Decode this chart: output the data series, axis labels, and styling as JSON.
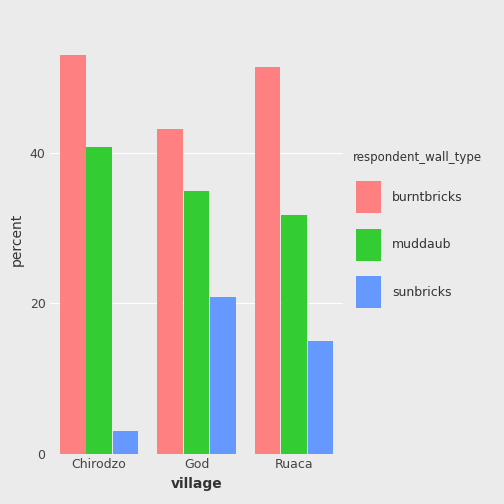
{
  "villages": [
    "Chirodzo",
    "God",
    "Ruaca"
  ],
  "wall_types": [
    "burntbricks",
    "muddaub",
    "sunbricks"
  ],
  "values": {
    "Chirodzo": {
      "burntbricks": 53.0,
      "muddaub": 40.8,
      "sunbricks": 3.0
    },
    "God": {
      "burntbricks": 43.2,
      "muddaub": 35.0,
      "sunbricks": 20.8
    },
    "Ruaca": {
      "burntbricks": 51.5,
      "muddaub": 31.8,
      "sunbricks": 15.0
    }
  },
  "colors": {
    "burntbricks": "#FF8080",
    "muddaub": "#33CC33",
    "sunbricks": "#6699FF"
  },
  "xlabel": "village",
  "ylabel": "percent",
  "legend_title": "respondent_wall_type",
  "background_color": "#EBEBEB",
  "panel_background": "#EBEBEB",
  "grid_color": "#FFFFFF",
  "ylim": [
    0,
    57
  ],
  "yticks": [
    0,
    20,
    40
  ],
  "bar_width": 0.27,
  "group_positions": [
    0,
    1,
    2
  ]
}
